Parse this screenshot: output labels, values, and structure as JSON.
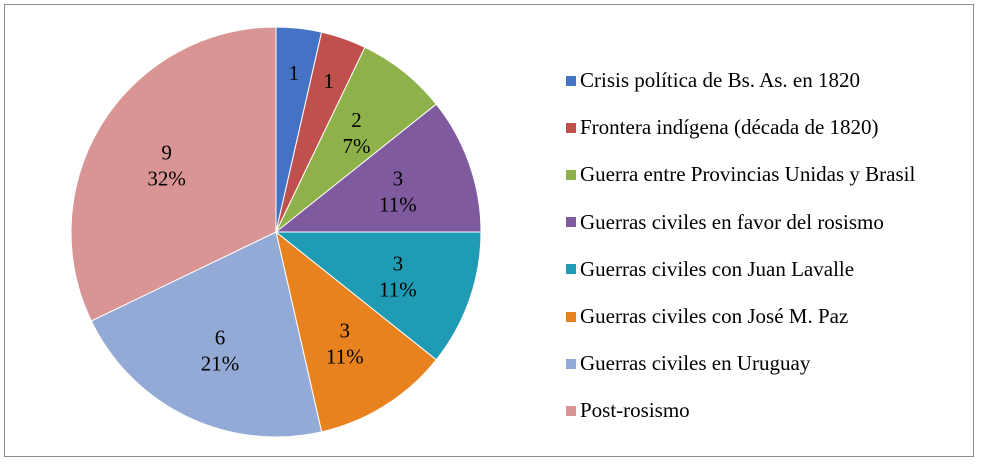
{
  "chart_data": {
    "type": "pie",
    "categories": [
      "Crisis política de Bs. As. en 1820",
      "Frontera indígena (década de 1820)",
      "Guerra entre Provincias Unidas y Brasil",
      "Guerras civiles en favor del rosismo",
      "Guerras civiles con Juan Lavalle",
      "Guerras civiles con José M. Paz",
      "Guerras civiles en Uruguay",
      "Post-rosismo"
    ],
    "values": [
      1,
      1,
      2,
      3,
      3,
      3,
      6,
      9
    ],
    "percent_labels": [
      "",
      "",
      "7%",
      "11%",
      "11%",
      "11%",
      "21%",
      "32%"
    ],
    "value_labels": [
      "1",
      "1",
      "2",
      "3",
      "3",
      "3",
      "6",
      "9"
    ],
    "colors": [
      "#4472C4",
      "#C0504D",
      "#8FB14A",
      "#7F5A9E",
      "#1F9BB3",
      "#E8821E",
      "#93A9D6",
      "#D99594"
    ],
    "legend_position": "right",
    "title": ""
  }
}
